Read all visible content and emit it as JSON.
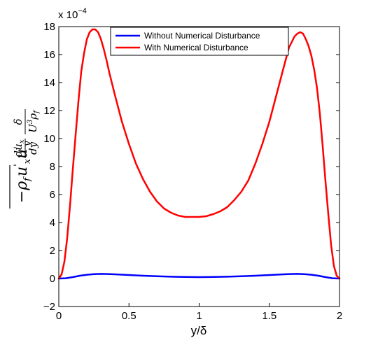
{
  "chart_data": {
    "type": "line",
    "xlabel": "y/δ",
    "ylabel": "−ρ_f u'_x u'_y (du_x/dy) δ/(U³ρ_f)",
    "ylabel_parts": {
      "lhs": "−ρ",
      "lhs_sub": "f",
      "ux": "u",
      "ux_sub": "x",
      "uy": "u",
      "uy_sub": "y",
      "frac1_num": "du",
      "frac1_num_sub": "x",
      "frac1_den": "dy",
      "frac2_num": "δ",
      "frac2_den": "U",
      "frac2_den_sup": "3",
      "frac2_den_tail": "ρ",
      "frac2_den_sub": "f"
    },
    "y_multiplier": "x 10",
    "y_multiplier_exp": "−4",
    "xlim": [
      0,
      2
    ],
    "ylim": [
      -2,
      18
    ],
    "xticks": [
      "0",
      "0.5",
      "1",
      "1.5",
      "2"
    ],
    "xtick_values": [
      0,
      0.5,
      1,
      1.5,
      2
    ],
    "yticks": [
      "−2",
      "0",
      "2",
      "4",
      "6",
      "8",
      "10",
      "12",
      "14",
      "16",
      "18"
    ],
    "ytick_values": [
      -2,
      0,
      2,
      4,
      6,
      8,
      10,
      12,
      14,
      16,
      18
    ],
    "grid": false,
    "legend_position": "top-center",
    "series": [
      {
        "name": "Without Numerical Disturbance",
        "color": "#0000ff",
        "x": [
          0,
          0.05,
          0.1,
          0.15,
          0.2,
          0.25,
          0.3,
          0.35,
          0.4,
          0.5,
          0.6,
          0.7,
          0.8,
          0.9,
          1.0,
          1.1,
          1.2,
          1.3,
          1.4,
          1.5,
          1.6,
          1.65,
          1.7,
          1.75,
          1.8,
          1.85,
          1.9,
          1.95,
          2.0
        ],
        "y": [
          0,
          0.02,
          0.1,
          0.2,
          0.27,
          0.31,
          0.33,
          0.32,
          0.3,
          0.25,
          0.2,
          0.16,
          0.13,
          0.11,
          0.1,
          0.11,
          0.13,
          0.16,
          0.2,
          0.25,
          0.3,
          0.32,
          0.33,
          0.31,
          0.27,
          0.2,
          0.1,
          0.02,
          0
        ]
      },
      {
        "name": "With Numerical Disturbance",
        "color": "#ff0000",
        "x": [
          0,
          0.02,
          0.04,
          0.06,
          0.08,
          0.1,
          0.12,
          0.14,
          0.16,
          0.18,
          0.2,
          0.22,
          0.24,
          0.26,
          0.28,
          0.3,
          0.32,
          0.34,
          0.36,
          0.4,
          0.45,
          0.5,
          0.55,
          0.6,
          0.65,
          0.7,
          0.75,
          0.8,
          0.85,
          0.9,
          0.95,
          1.0,
          1.05,
          1.1,
          1.15,
          1.2,
          1.25,
          1.3,
          1.35,
          1.4,
          1.45,
          1.5,
          1.55,
          1.6,
          1.64,
          1.68,
          1.7,
          1.72,
          1.74,
          1.76,
          1.78,
          1.8,
          1.82,
          1.84,
          1.86,
          1.88,
          1.9,
          1.92,
          1.94,
          1.96,
          1.98,
          2.0
        ],
        "y": [
          0,
          0.3,
          1.2,
          2.9,
          5.2,
          7.8,
          10.3,
          12.7,
          14.8,
          16.1,
          17.1,
          17.6,
          17.8,
          17.8,
          17.6,
          17.1,
          16.4,
          15.6,
          14.7,
          13.1,
          11.2,
          9.6,
          8.2,
          7.1,
          6.2,
          5.5,
          5.0,
          4.7,
          4.5,
          4.4,
          4.4,
          4.4,
          4.45,
          4.6,
          4.8,
          5.1,
          5.6,
          6.2,
          7.0,
          8.2,
          9.6,
          11.2,
          13.1,
          15.0,
          16.5,
          17.3,
          17.5,
          17.6,
          17.5,
          17.1,
          16.6,
          15.9,
          14.9,
          13.6,
          11.8,
          9.5,
          7.0,
          4.6,
          2.4,
          0.9,
          0.2,
          0
        ]
      }
    ]
  }
}
